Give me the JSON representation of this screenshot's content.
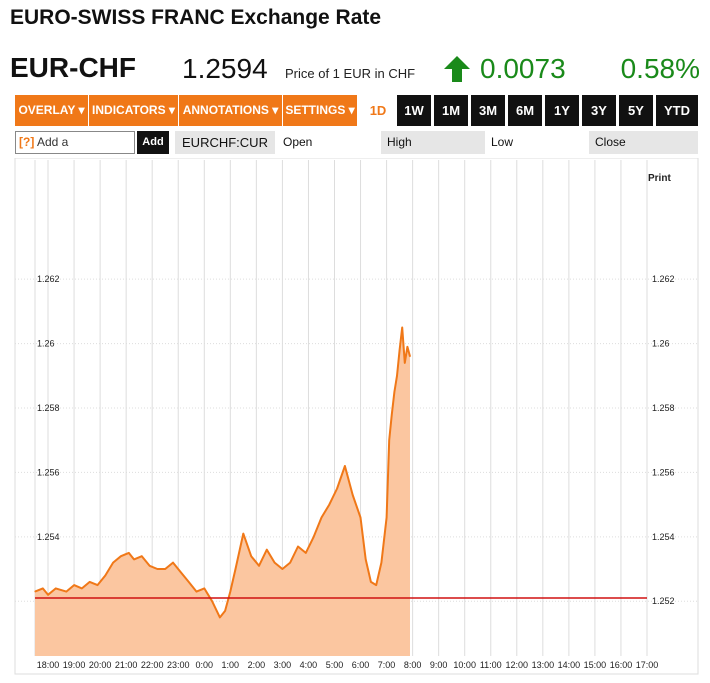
{
  "page": {
    "title": "EURO-SWISS FRANC Exchange Rate",
    "symbol": "EUR-CHF",
    "price": "1.2594",
    "price_note": "Price of 1 EUR in CHF",
    "change": "0.0073",
    "change_pct": "0.58%",
    "direction_icon": "up-arrow-icon",
    "up_color": "#1a8a1a"
  },
  "toolbar": {
    "menus": [
      "OVERLAY ▾",
      "INDICATORS ▾",
      "ANNOTATIONS ▾",
      "SETTINGS ▾"
    ],
    "ranges": [
      "1D",
      "1W",
      "1M",
      "3M",
      "6M",
      "1Y",
      "3Y",
      "5Y",
      "YTD"
    ],
    "active_range": "1D",
    "accent": "#f07818"
  },
  "compare": {
    "help": "[?]",
    "placeholder": "Add a Comparison",
    "add_label": "Add",
    "ticker": "EURCHF:CUR",
    "open_label": "Open",
    "high_label": "High",
    "low_label": "Low",
    "close_label": "Close"
  },
  "print_label": "Print",
  "chart_data": {
    "type": "area",
    "grid": true,
    "ylim": [
      1.2503,
      1.2657
    ],
    "yticks": [
      {
        "value": 1.252,
        "label": "1.252"
      },
      {
        "value": 1.254,
        "label": "1.254"
      },
      {
        "value": 1.256,
        "label": "1.256"
      },
      {
        "value": 1.258,
        "label": "1.258"
      },
      {
        "value": 1.26,
        "label": "1.26"
      },
      {
        "value": 1.262,
        "label": "1.262"
      }
    ],
    "xticks": [
      "18:00",
      "19:00",
      "20:00",
      "21:00",
      "22:00",
      "23:00",
      "0:00",
      "1:00",
      "2:00",
      "3:00",
      "4:00",
      "5:00",
      "6:00",
      "7:00",
      "8:00",
      "9:00",
      "10:00",
      "11:00",
      "12:00",
      "13:00",
      "14:00",
      "15:00",
      "16:00",
      "17:00"
    ],
    "reference_line": {
      "value": 1.2521,
      "color": "#d01010"
    },
    "series": [
      {
        "color": "#f07818",
        "fill": "#fbc6a0",
        "x": [
          17.5,
          17.8,
          18.0,
          18.3,
          18.7,
          19.0,
          19.3,
          19.6,
          19.9,
          20.2,
          20.5,
          20.8,
          21.1,
          21.3,
          21.6,
          21.9,
          22.2,
          22.5,
          22.8,
          23.1,
          23.4,
          23.7,
          24.0,
          24.3,
          24.6,
          24.8,
          25.0,
          25.2,
          25.5,
          25.8,
          26.1,
          26.4,
          26.7,
          27.0,
          27.3,
          27.6,
          27.9,
          28.2,
          28.5,
          28.8,
          29.1,
          29.4,
          29.7,
          30.0,
          30.2,
          30.4,
          30.6,
          30.8,
          31.0,
          31.1,
          31.2,
          31.3,
          31.4,
          31.5,
          31.6,
          31.7,
          31.8,
          31.9
        ],
        "y": [
          1.2523,
          1.2524,
          1.2522,
          1.2524,
          1.2523,
          1.2525,
          1.2524,
          1.2526,
          1.2525,
          1.2528,
          1.2532,
          1.2534,
          1.2535,
          1.2533,
          1.2534,
          1.2531,
          1.253,
          1.253,
          1.2532,
          1.2529,
          1.2526,
          1.2523,
          1.2524,
          1.252,
          1.2515,
          1.2517,
          1.2523,
          1.253,
          1.2541,
          1.2534,
          1.2531,
          1.2536,
          1.2532,
          1.253,
          1.2532,
          1.2537,
          1.2535,
          1.254,
          1.2546,
          1.255,
          1.2555,
          1.2562,
          1.2553,
          1.2546,
          1.2533,
          1.2526,
          1.2525,
          1.2532,
          1.2546,
          1.257,
          1.2578,
          1.2585,
          1.259,
          1.2598,
          1.2605,
          1.2594,
          1.2599,
          1.2596
        ]
      }
    ]
  }
}
